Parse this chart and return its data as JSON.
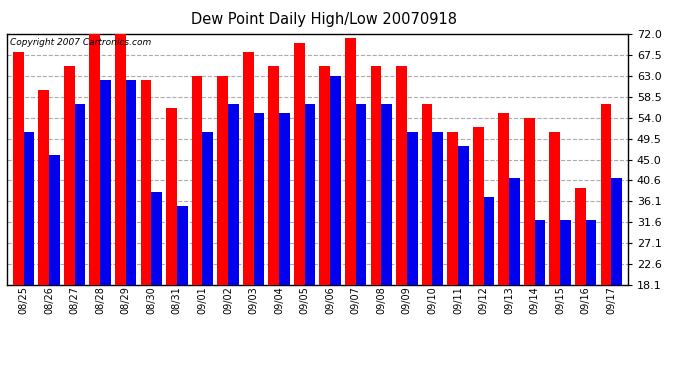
{
  "title": "Dew Point Daily High/Low 20070918",
  "copyright": "Copyright 2007 Cartronics.com",
  "dates": [
    "08/25",
    "08/26",
    "08/27",
    "08/28",
    "08/29",
    "08/30",
    "08/31",
    "09/01",
    "09/02",
    "09/03",
    "09/04",
    "09/05",
    "09/06",
    "09/07",
    "09/08",
    "09/09",
    "09/10",
    "09/11",
    "09/12",
    "09/13",
    "09/14",
    "09/15",
    "09/16",
    "09/17"
  ],
  "highs": [
    68,
    60,
    65,
    73,
    73,
    62,
    56,
    63,
    63,
    68,
    65,
    70,
    65,
    71,
    65,
    65,
    57,
    51,
    52,
    55,
    54,
    51,
    39,
    57
  ],
  "lows": [
    51,
    46,
    57,
    62,
    62,
    38,
    35,
    51,
    57,
    55,
    55,
    57,
    63,
    57,
    57,
    51,
    51,
    48,
    37,
    41,
    32,
    32,
    32,
    41
  ],
  "high_color": "#ff0000",
  "low_color": "#0000ee",
  "bg_color": "#ffffff",
  "grid_color": "#aaaaaa",
  "yticks": [
    18.1,
    22.6,
    27.1,
    31.6,
    36.1,
    40.6,
    45.0,
    49.5,
    54.0,
    58.5,
    63.0,
    67.5,
    72.0
  ],
  "ymin": 18.1,
  "ymax": 72.0,
  "bar_width": 0.42,
  "figwidth": 6.9,
  "figheight": 3.75,
  "dpi": 100
}
